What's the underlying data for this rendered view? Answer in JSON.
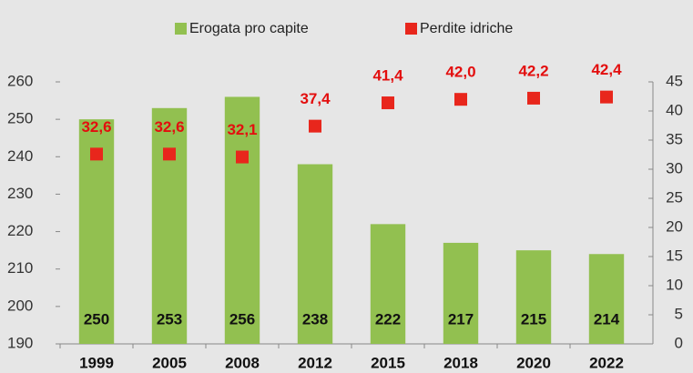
{
  "chart_data": {
    "type": "bar",
    "categories": [
      "1999",
      "2005",
      "2008",
      "2012",
      "2015",
      "2018",
      "2020",
      "2022"
    ],
    "series": [
      {
        "name": "Erogata pro capite",
        "type": "bar",
        "color": "#92c050",
        "axis": "y",
        "values": [
          250,
          253,
          256,
          238,
          222,
          217,
          215,
          214
        ]
      },
      {
        "name": "Perdite idriche",
        "type": "scatter",
        "color": "#e8261c",
        "axis": "y2",
        "values": [
          32.6,
          32.6,
          32.1,
          37.4,
          41.4,
          42.0,
          42.2,
          42.4
        ],
        "value_labels": [
          "32,6",
          "32,6",
          "32,1",
          "37,4",
          "41,4",
          "42,0",
          "42,2",
          "42,4"
        ]
      }
    ],
    "ylim": [
      190,
      260
    ],
    "yticks": [
      190,
      200,
      210,
      220,
      230,
      240,
      250,
      260
    ],
    "y2lim": [
      0,
      45
    ],
    "y2ticks": [
      0,
      5,
      10,
      15,
      20,
      25,
      30,
      35,
      40,
      45
    ],
    "legend": "top",
    "grid": false
  }
}
